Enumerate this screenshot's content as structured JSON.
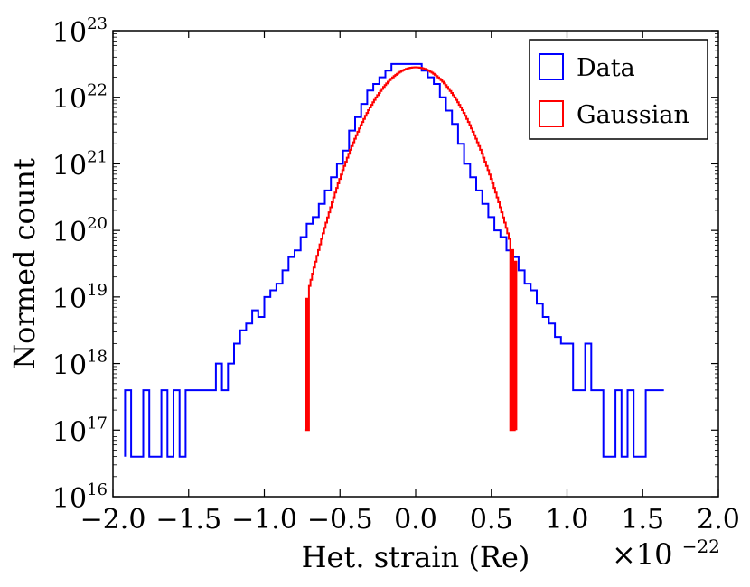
{
  "chart_data": {
    "type": "histogram",
    "xlabel": "Het. strain (Re)",
    "ylabel": "Normed count",
    "x_scale_label": {
      "base": "×10",
      "exponent": "−22"
    },
    "xlim": [
      -2.0,
      2.0
    ],
    "x_unit_multiplier": 1e-22,
    "yscale": "log",
    "ylim_log10": [
      16,
      23
    ],
    "x_ticks": [
      {
        "value": -2.0,
        "label": "−2.0"
      },
      {
        "value": -1.5,
        "label": "−1.5"
      },
      {
        "value": -1.0,
        "label": "−1.0"
      },
      {
        "value": -0.5,
        "label": "−0.5"
      },
      {
        "value": 0.0,
        "label": "0.0"
      },
      {
        "value": 0.5,
        "label": "0.5"
      },
      {
        "value": 1.0,
        "label": "1.0"
      },
      {
        "value": 1.5,
        "label": "1.5"
      },
      {
        "value": 2.0,
        "label": "2.0"
      }
    ],
    "y_ticks": [
      {
        "log10": 16,
        "base": "10",
        "exp": "16"
      },
      {
        "log10": 17,
        "base": "10",
        "exp": "17"
      },
      {
        "log10": 18,
        "base": "10",
        "exp": "18"
      },
      {
        "log10": 19,
        "base": "10",
        "exp": "19"
      },
      {
        "log10": 20,
        "base": "10",
        "exp": "20"
      },
      {
        "log10": 21,
        "base": "10",
        "exp": "21"
      },
      {
        "log10": 22,
        "base": "10",
        "exp": "22"
      },
      {
        "log10": 23,
        "base": "10",
        "exp": "23"
      }
    ],
    "legend": {
      "placement": "top-right"
    },
    "series": [
      {
        "name": "Data",
        "color": "#0000ff",
        "step_x": [
          -1.9,
          -1.86,
          -1.82,
          -1.78,
          -1.74,
          -1.7,
          -1.66,
          -1.62,
          -1.58,
          -1.54,
          -1.5,
          -1.46,
          -1.42,
          -1.38,
          -1.34,
          -1.3,
          -1.26,
          -1.22,
          -1.18,
          -1.14,
          -1.1,
          -1.06,
          -1.02,
          -0.98,
          -0.94,
          -0.9,
          -0.86,
          -0.82,
          -0.78,
          -0.74,
          -0.7,
          -0.66,
          -0.62,
          -0.58,
          -0.54,
          -0.5,
          -0.46,
          -0.42,
          -0.38,
          -0.34,
          -0.3,
          -0.26,
          -0.22,
          -0.18,
          -0.14,
          -0.1,
          -0.06,
          -0.02,
          0.02,
          0.06,
          0.1,
          0.14,
          0.18,
          0.22,
          0.26,
          0.3,
          0.34,
          0.38,
          0.42,
          0.46,
          0.5,
          0.54,
          0.58,
          0.62,
          0.66,
          0.7,
          0.74,
          0.78,
          0.82,
          0.86,
          0.9,
          0.94,
          0.98,
          1.02,
          1.06,
          1.1,
          1.14,
          1.18,
          1.22,
          1.26,
          1.3,
          1.34,
          1.38,
          1.42,
          1.46,
          1.5,
          1.54,
          1.58,
          1.62,
          1.66
        ],
        "log10_counts": [
          17.6,
          16.6,
          16.6,
          17.6,
          16.6,
          16.6,
          17.6,
          16.6,
          17.6,
          16.6,
          17.6,
          17.6,
          17.6,
          17.6,
          17.6,
          18.0,
          17.6,
          18.0,
          18.3,
          18.5,
          18.6,
          18.8,
          18.7,
          19.0,
          19.1,
          19.2,
          19.4,
          19.6,
          19.7,
          19.9,
          20.1,
          20.2,
          20.4,
          20.6,
          20.8,
          21.0,
          21.2,
          21.5,
          21.7,
          21.9,
          22.1,
          22.2,
          22.3,
          22.4,
          22.5,
          22.5,
          22.5,
          22.5,
          22.5,
          22.4,
          22.3,
          22.2,
          22.0,
          21.8,
          21.6,
          21.3,
          21.0,
          20.8,
          20.6,
          20.4,
          20.2,
          20.0,
          19.9,
          19.7,
          19.6,
          19.4,
          19.2,
          19.1,
          18.9,
          18.7,
          18.6,
          18.4,
          18.3,
          18.3,
          17.6,
          17.6,
          18.3,
          17.6,
          17.6,
          16.6,
          16.6,
          17.6,
          16.6,
          17.6,
          16.6,
          16.6,
          17.6,
          17.6,
          17.6
        ]
      },
      {
        "name": "Gaussian",
        "color": "#ff0000",
        "sigma": 0.18,
        "peak_log10": 22.45,
        "x_range": [
          -0.73,
          0.66
        ],
        "floor_log10": 17.0,
        "noisy_tails": {
          "left": [
            -0.73,
            -0.7
          ],
          "right": [
            0.62,
            0.65
          ]
        }
      }
    ]
  }
}
